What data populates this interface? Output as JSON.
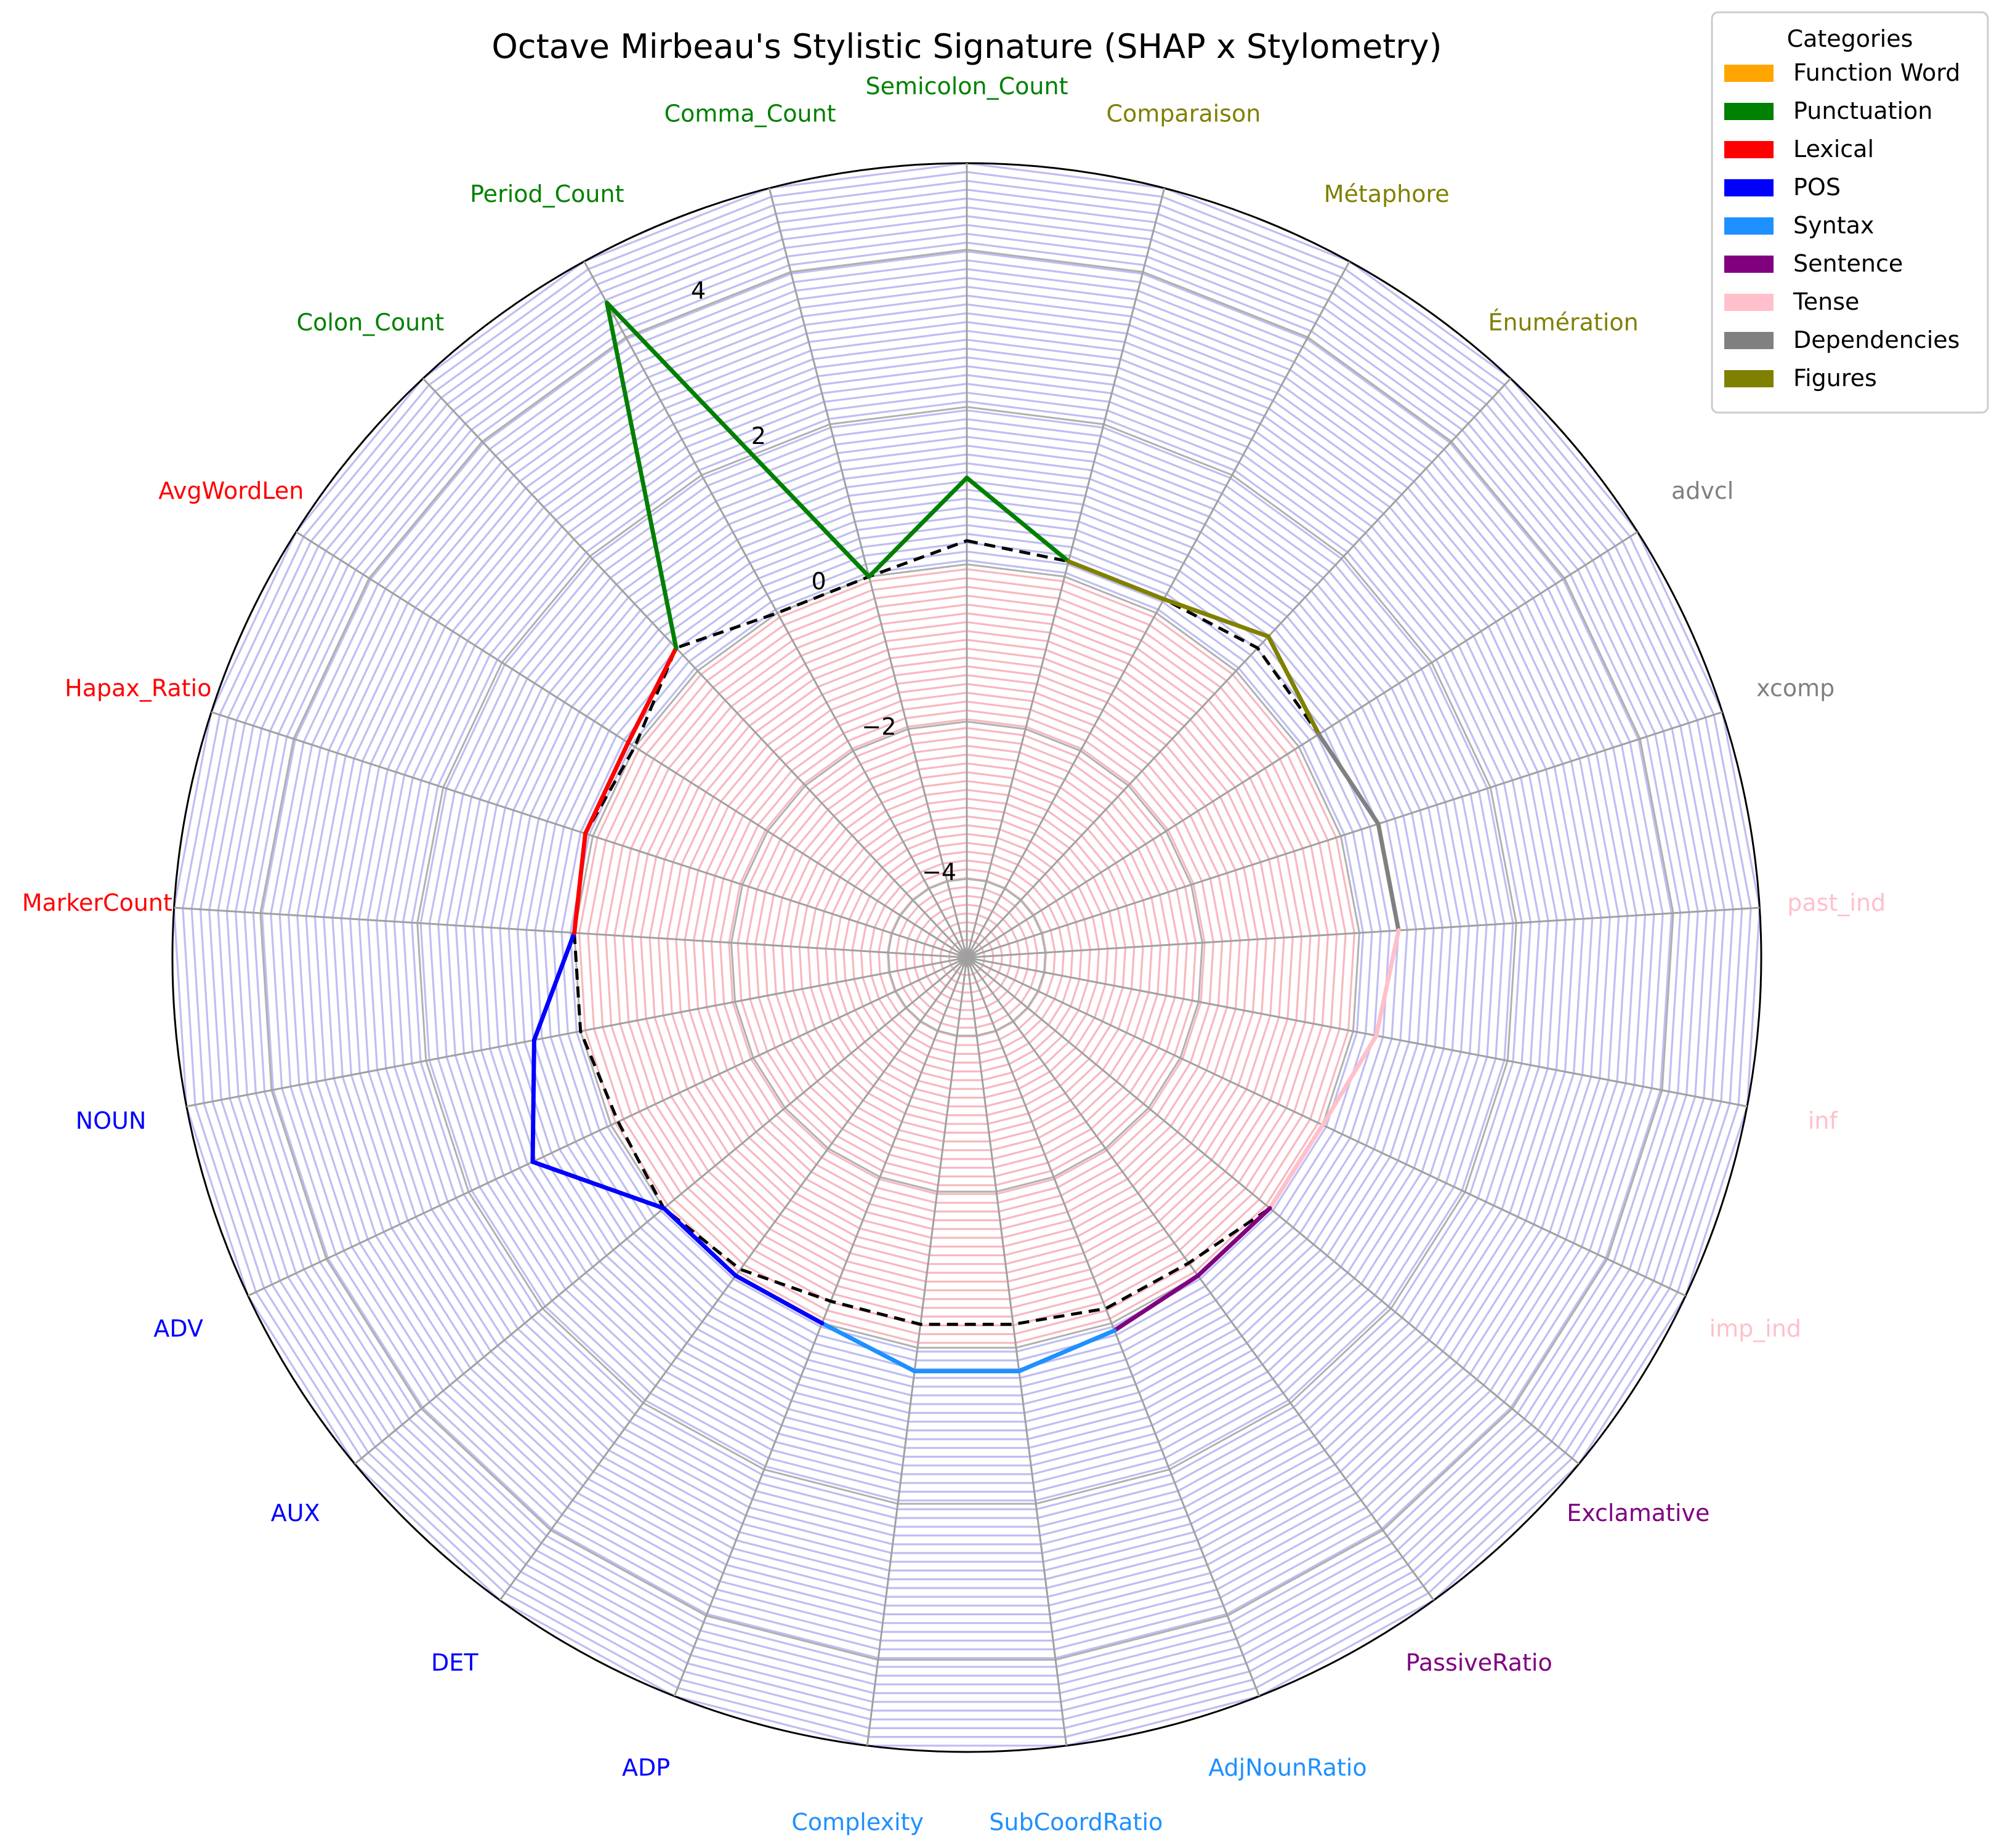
{
  "chart_data": {
    "type": "radar",
    "title": "Octave Mirbeau's Stylistic Signature (SHAP x Stylometry)",
    "r_range": [
      -5,
      5.1
    ],
    "r_ticks": [
      -4,
      -2,
      0,
      2,
      4
    ],
    "r_tick_labels": [
      "−4",
      "−2",
      "0",
      "2",
      "4"
    ],
    "grid": true,
    "legend_position": "top-right",
    "legend_title": "Categories",
    "categories": [
      {
        "name": "Function Word",
        "color": "#FFA500"
      },
      {
        "name": "Punctuation",
        "color": "#008000"
      },
      {
        "name": "Lexical",
        "color": "#FF0000"
      },
      {
        "name": "POS",
        "color": "#0000FF"
      },
      {
        "name": "Syntax",
        "color": "#1E90FF"
      },
      {
        "name": "Sentence",
        "color": "#800080"
      },
      {
        "name": "Tense",
        "color": "#FFC0CB"
      },
      {
        "name": "Dependencies",
        "color": "#808080"
      },
      {
        "name": "Figures",
        "color": "#808000"
      }
    ],
    "features": [
      {
        "name": "Semicolon_Count",
        "category": "Punctuation",
        "value": 1.1,
        "baseline": 0.3
      },
      {
        "name": "Comparaison",
        "category": "Figures",
        "value": 0.2,
        "baseline": 0.2
      },
      {
        "name": "Métaphore",
        "category": "Figures",
        "value": 0.2,
        "baseline": 0.2
      },
      {
        "name": "Énumération",
        "category": "Figures",
        "value": 0.6,
        "baseline": 0.4
      },
      {
        "name": "advcl",
        "category": "Dependencies",
        "value": 0.3,
        "baseline": 0.3
      },
      {
        "name": "xcomp",
        "category": "Dependencies",
        "value": 0.5,
        "baseline": 0.5
      },
      {
        "name": "past_ind",
        "category": "Tense",
        "value": 0.5,
        "baseline": 0.5
      },
      {
        "name": "inf",
        "category": "Tense",
        "value": 0.3,
        "baseline": 0.3
      },
      {
        "name": "imp_ind",
        "category": "Tense",
        "value": 0.0,
        "baseline": 0.0
      },
      {
        "name": "Exclamative",
        "category": "Sentence",
        "value": 0.0,
        "baseline": 0.0
      },
      {
        "name": "PassiveRatio",
        "category": "Sentence",
        "value": 0.0,
        "baseline": -0.2
      },
      {
        "name": "AdjNounRatio",
        "category": "Syntax",
        "value": 0.1,
        "baseline": -0.2
      },
      {
        "name": "SubCoordRatio",
        "category": "Syntax",
        "value": 0.3,
        "baseline": -0.3
      },
      {
        "name": "Complexity",
        "category": "Syntax",
        "value": 0.3,
        "baseline": -0.3
      },
      {
        "name": "ADP",
        "category": "POS",
        "value": 0.0,
        "baseline": -0.3
      },
      {
        "name": "DET",
        "category": "POS",
        "value": 0.0,
        "baseline": -0.1
      },
      {
        "name": "AUX",
        "category": "POS",
        "value": 0.0,
        "baseline": 0.0
      },
      {
        "name": "ADV",
        "category": "POS",
        "value": 1.1,
        "baseline": -0.1
      },
      {
        "name": "NOUN",
        "category": "POS",
        "value": 0.6,
        "baseline": 0.0
      },
      {
        "name": "MarkerCount",
        "category": "Lexical",
        "value": 0.0,
        "baseline": 0.0
      },
      {
        "name": "Hapax_Ratio",
        "category": "Lexical",
        "value": 0.1,
        "baseline": 0.1
      },
      {
        "name": "AvgWordLen",
        "category": "Lexical",
        "value": 0.1,
        "baseline": 0.0
      },
      {
        "name": "Colon_Count",
        "category": "Punctuation",
        "value": 0.4,
        "baseline": 0.4
      },
      {
        "name": "Period_Count",
        "category": "Punctuation",
        "value": 4.5,
        "baseline": 0.0
      },
      {
        "name": "Comma_Count",
        "category": "Punctuation",
        "value": 0.0,
        "baseline": 0.0
      }
    ]
  }
}
